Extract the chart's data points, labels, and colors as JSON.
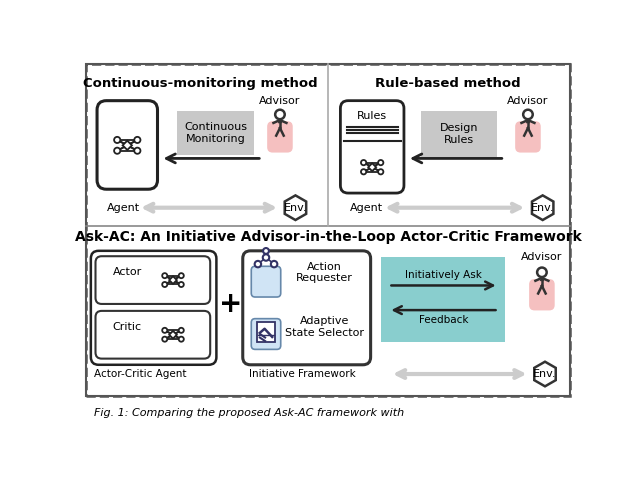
{
  "bg_color": "#ffffff",
  "gray_box_color": "#c8c8c8",
  "pink_color": "#f5c0c0",
  "teal_color": "#89cece",
  "light_blue_box_color": "#d0e4f5",
  "node_color": "#222222",
  "title_top_left": "Continuous-monitoring method",
  "title_top_right": "Rule-based method",
  "title_bottom": "Ask-AC: An Initiative Advisor-in-the-Loop Actor-Critic Framework",
  "caption": "Fig. 1: Comparing the proposed Ask-AC framework with",
  "fs_title": 9.5,
  "fs_label": 8,
  "fs_small": 7.5,
  "fs_caption": 8
}
